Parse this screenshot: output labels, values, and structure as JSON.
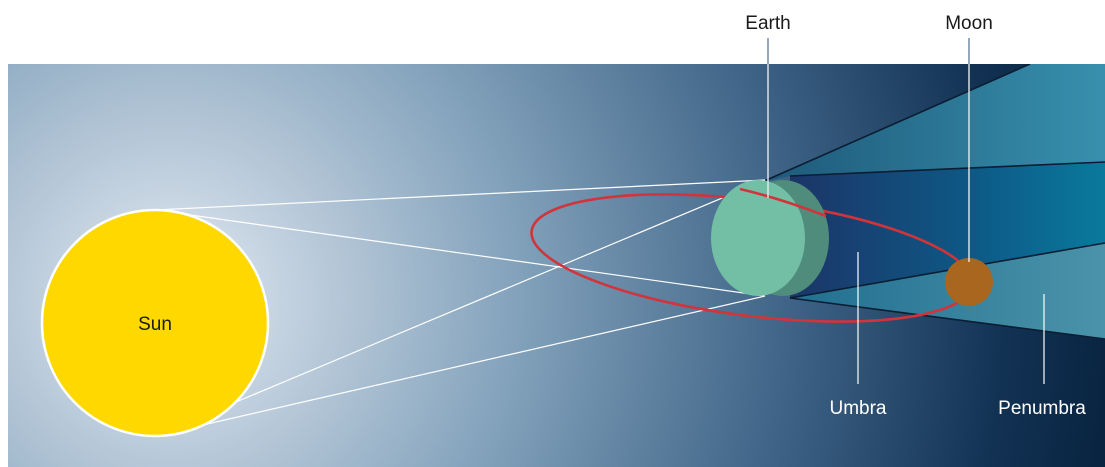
{
  "labels": {
    "sun": "Sun",
    "earth": "Earth",
    "moon": "Moon",
    "umbra": "Umbra",
    "penumbra": "Penumbra"
  },
  "colors": {
    "sun": "#FFD800",
    "earth_front": "#73BFA5",
    "earth_side": "#4F8C7B",
    "moon": "#A8661E",
    "orbit": "#D1343A",
    "umbra": "#1F3D6E",
    "penumbra": "#2A86A6"
  }
}
